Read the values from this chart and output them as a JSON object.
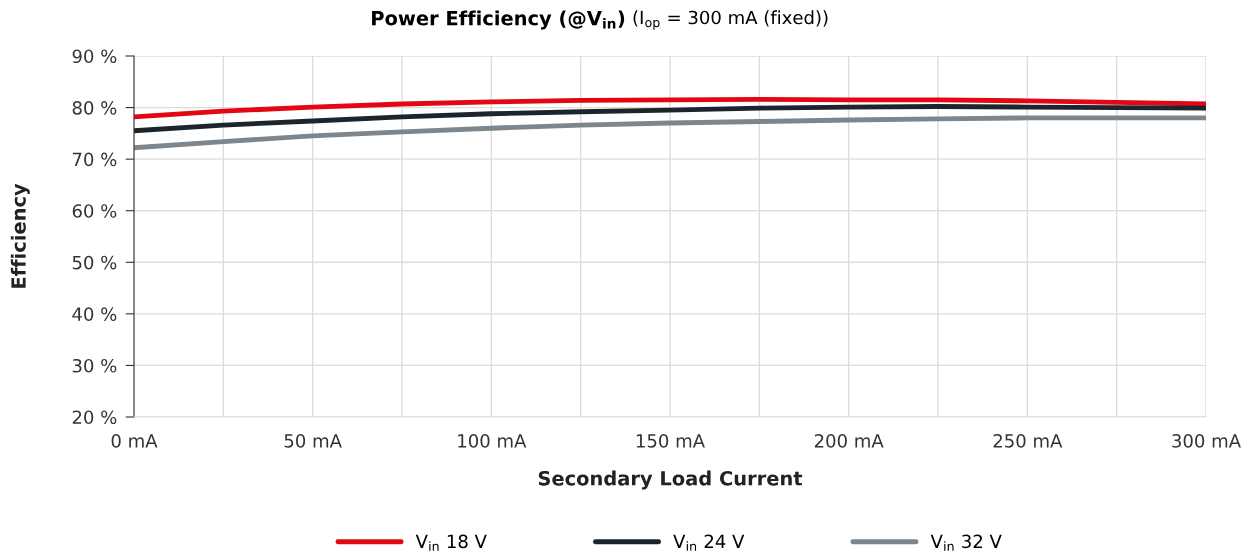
{
  "chart_data": {
    "type": "line",
    "title": "Power Efficiency (@V$_{in}$)",
    "subtitle": "(I$_{op}$ = 300 mA (fixed))",
    "xlabel": "Secondary Load Current",
    "ylabel": "Efficiency",
    "x": [
      0,
      25,
      50,
      75,
      100,
      125,
      150,
      175,
      200,
      225,
      250,
      275,
      300
    ],
    "series": [
      {
        "name": "V$_{in}$ 18 V",
        "color": "#e30613",
        "values": [
          78.2,
          79.3,
          80.1,
          80.7,
          81.1,
          81.4,
          81.5,
          81.6,
          81.5,
          81.5,
          81.3,
          81.0,
          80.7
        ]
      },
      {
        "name": "V$_{in}$ 24 V",
        "color": "#1d252c",
        "values": [
          75.5,
          76.6,
          77.4,
          78.2,
          78.8,
          79.2,
          79.5,
          79.9,
          80.1,
          80.2,
          80.1,
          80.0,
          79.9
        ]
      },
      {
        "name": "V$_{in}$ 32 V",
        "color": "#7d868c",
        "values": [
          72.2,
          73.4,
          74.5,
          75.3,
          76.0,
          76.6,
          77.0,
          77.3,
          77.6,
          77.8,
          78.0,
          78.0,
          78.0
        ]
      }
    ],
    "xlim": [
      0,
      300
    ],
    "xticks": [
      {
        "value": 0,
        "label": "0 mA"
      },
      {
        "value": 25,
        "label": null
      },
      {
        "value": 50,
        "label": "50 mA"
      },
      {
        "value": 75,
        "label": null
      },
      {
        "value": 100,
        "label": "100 mA"
      },
      {
        "value": 125,
        "label": null
      },
      {
        "value": 150,
        "label": "150 mA"
      },
      {
        "value": 175,
        "label": null
      },
      {
        "value": 200,
        "label": "200 mA"
      },
      {
        "value": 225,
        "label": null
      },
      {
        "value": 250,
        "label": "250 mA"
      },
      {
        "value": 275,
        "label": null
      },
      {
        "value": 300,
        "label": "300 mA"
      }
    ],
    "ylim": [
      20,
      90
    ],
    "yticks": [
      {
        "value": 20,
        "label": "20 %"
      },
      {
        "value": 30,
        "label": "30 %"
      },
      {
        "value": 40,
        "label": "40 %"
      },
      {
        "value": 50,
        "label": "50 %"
      },
      {
        "value": 60,
        "label": "60 %"
      },
      {
        "value": 70,
        "label": "70 %"
      },
      {
        "value": 80,
        "label": "80 %"
      },
      {
        "value": 90,
        "label": "90 %"
      }
    ],
    "grid": true,
    "legend": "bottom",
    "line_style": "solid",
    "marker": "none"
  }
}
